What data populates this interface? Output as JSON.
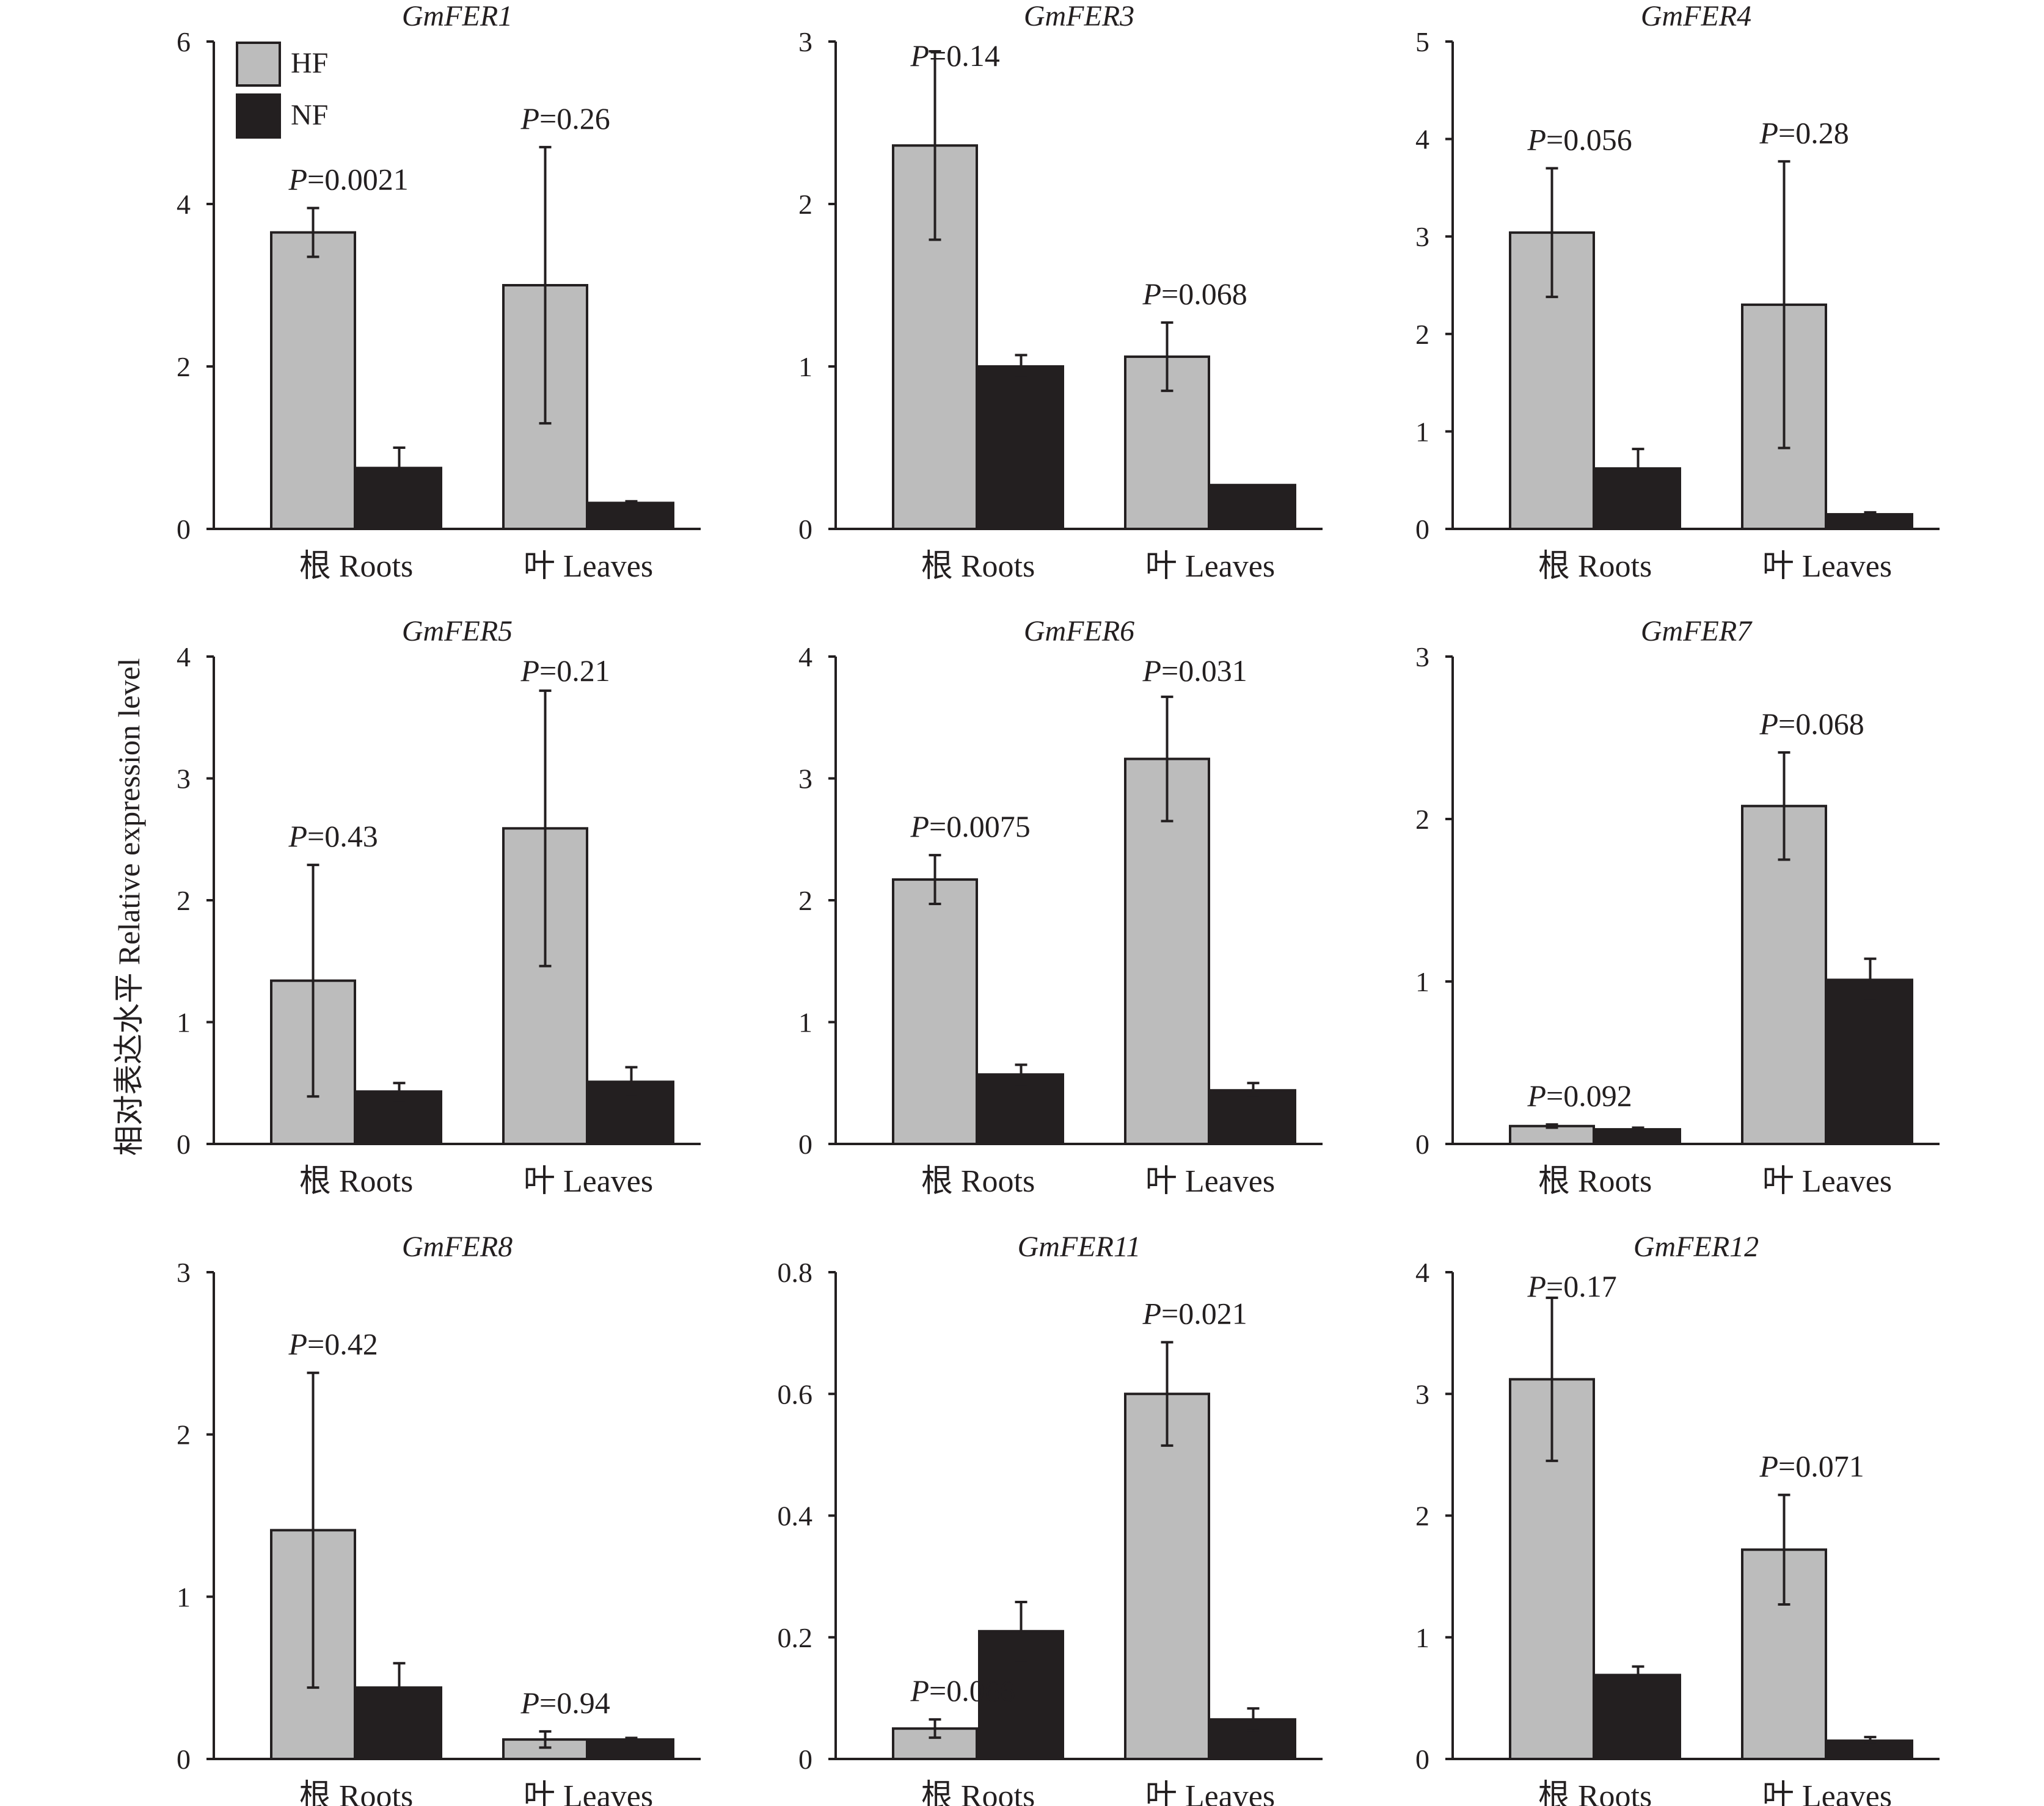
{
  "y_axis_label": "相对表达水平 Relative expression level",
  "colors": {
    "HF": "#bcbcbc",
    "NF": "#231f20",
    "axis": "#231f20"
  },
  "chart_data": [
    {
      "type": "bar",
      "title": "GmFER1",
      "categories": [
        "根 Roots",
        "叶 Leaves"
      ],
      "ylim": [
        0,
        6
      ],
      "yticks": [
        "0",
        "2",
        "4",
        "6"
      ],
      "legend": "top-left",
      "series": [
        {
          "name": "HF",
          "values": [
            3.65,
            3.0
          ],
          "errors": [
            0.3,
            1.7
          ]
        },
        {
          "name": "NF",
          "values": [
            0.75,
            0.32
          ],
          "errors": [
            0.25,
            0.02
          ]
        }
      ],
      "p_values": [
        {
          "label": "P",
          "value": "=0.0021"
        },
        {
          "label": "P",
          "value": "=0.26"
        }
      ]
    },
    {
      "type": "bar",
      "title": "GmFER3",
      "categories": [
        "根 Roots",
        "叶 Leaves"
      ],
      "ylim": [
        0,
        3
      ],
      "yticks": [
        "0",
        "1",
        "2",
        "3"
      ],
      "series": [
        {
          "name": "HF",
          "values": [
            2.36,
            1.06
          ],
          "errors": [
            0.58,
            0.21
          ]
        },
        {
          "name": "NF",
          "values": [
            1.0,
            0.27
          ],
          "errors": [
            0.07,
            0.0
          ]
        }
      ],
      "p_values": [
        {
          "label": "P",
          "value": "=0.14"
        },
        {
          "label": "P",
          "value": "=0.068"
        }
      ]
    },
    {
      "type": "bar",
      "title": "GmFER4",
      "categories": [
        "根 Roots",
        "叶 Leaves"
      ],
      "ylim": [
        0,
        5
      ],
      "yticks": [
        "0",
        "1",
        "2",
        "3",
        "4",
        "5"
      ],
      "series": [
        {
          "name": "HF",
          "values": [
            3.04,
            2.3
          ],
          "errors": [
            0.66,
            1.47
          ]
        },
        {
          "name": "NF",
          "values": [
            0.62,
            0.15
          ],
          "errors": [
            0.2,
            0.02
          ]
        }
      ],
      "p_values": [
        {
          "label": "P",
          "value": "=0.056"
        },
        {
          "label": "P",
          "value": "=0.28"
        }
      ]
    },
    {
      "type": "bar",
      "title": "GmFER5",
      "categories": [
        "根 Roots",
        "叶 Leaves"
      ],
      "ylim": [
        0,
        4
      ],
      "yticks": [
        "0",
        "1",
        "2",
        "3",
        "4"
      ],
      "series": [
        {
          "name": "HF",
          "values": [
            1.34,
            2.59
          ],
          "errors": [
            0.95,
            1.13
          ]
        },
        {
          "name": "NF",
          "values": [
            0.43,
            0.51
          ],
          "errors": [
            0.07,
            0.12
          ]
        }
      ],
      "p_values": [
        {
          "label": "P",
          "value": "=0.43"
        },
        {
          "label": "P",
          "value": "=0.21"
        }
      ]
    },
    {
      "type": "bar",
      "title": "GmFER6",
      "categories": [
        "根 Roots",
        "叶 Leaves"
      ],
      "ylim": [
        0,
        4
      ],
      "yticks": [
        "0",
        "1",
        "2",
        "3",
        "4"
      ],
      "series": [
        {
          "name": "HF",
          "values": [
            2.17,
            3.16
          ],
          "errors": [
            0.2,
            0.51
          ]
        },
        {
          "name": "NF",
          "values": [
            0.57,
            0.44
          ],
          "errors": [
            0.08,
            0.06
          ]
        }
      ],
      "p_values": [
        {
          "label": "P",
          "value": "=0.0075"
        },
        {
          "label": "P",
          "value": "=0.031"
        }
      ]
    },
    {
      "type": "bar",
      "title": "GmFER7",
      "categories": [
        "根 Roots",
        "叶 Leaves"
      ],
      "ylim": [
        0,
        3
      ],
      "yticks": [
        "0",
        "1",
        "2",
        "3"
      ],
      "series": [
        {
          "name": "HF",
          "values": [
            0.11,
            2.08
          ],
          "errors": [
            0.01,
            0.33
          ]
        },
        {
          "name": "NF",
          "values": [
            0.09,
            1.01
          ],
          "errors": [
            0.01,
            0.13
          ]
        }
      ],
      "p_values": [
        {
          "label": "P",
          "value": "=0.092"
        },
        {
          "label": "P",
          "value": "=0.068"
        }
      ]
    },
    {
      "type": "bar",
      "title": "GmFER8",
      "categories": [
        "根 Roots",
        "叶 Leaves"
      ],
      "ylim": [
        0,
        3
      ],
      "yticks": [
        "0",
        "1",
        "2",
        "3"
      ],
      "series": [
        {
          "name": "HF",
          "values": [
            1.41,
            0.12
          ],
          "errors": [
            0.97,
            0.05
          ]
        },
        {
          "name": "NF",
          "values": [
            0.44,
            0.12
          ],
          "errors": [
            0.15,
            0.01
          ]
        }
      ],
      "p_values": [
        {
          "label": "P",
          "value": "=0.42"
        },
        {
          "label": "P",
          "value": "=0.94"
        }
      ]
    },
    {
      "type": "bar",
      "title": "GmFER11",
      "categories": [
        "根 Roots",
        "叶 Leaves"
      ],
      "ylim": [
        0,
        0.8
      ],
      "yticks": [
        "0",
        "0.2",
        "0.4",
        "0.6",
        "0.8"
      ],
      "series": [
        {
          "name": "HF",
          "values": [
            0.05,
            0.6
          ],
          "errors": [
            0.015,
            0.085
          ]
        },
        {
          "name": "NF",
          "values": [
            0.21,
            0.065
          ],
          "errors": [
            0.048,
            0.018
          ]
        }
      ],
      "p_values": [
        {
          "label": "P",
          "value": "=0.066"
        },
        {
          "label": "P",
          "value": "=0.021"
        }
      ]
    },
    {
      "type": "bar",
      "title": "GmFER12",
      "categories": [
        "根 Roots",
        "叶 Leaves"
      ],
      "ylim": [
        0,
        4
      ],
      "yticks": [
        "0",
        "1",
        "2",
        "3",
        "4"
      ],
      "series": [
        {
          "name": "HF",
          "values": [
            3.12,
            1.72
          ],
          "errors": [
            0.67,
            0.45
          ]
        },
        {
          "name": "NF",
          "values": [
            0.69,
            0.15
          ],
          "errors": [
            0.07,
            0.03
          ]
        }
      ],
      "p_values": [
        {
          "label": "P",
          "value": "=0.17"
        },
        {
          "label": "P",
          "value": "=0.071"
        }
      ]
    }
  ]
}
